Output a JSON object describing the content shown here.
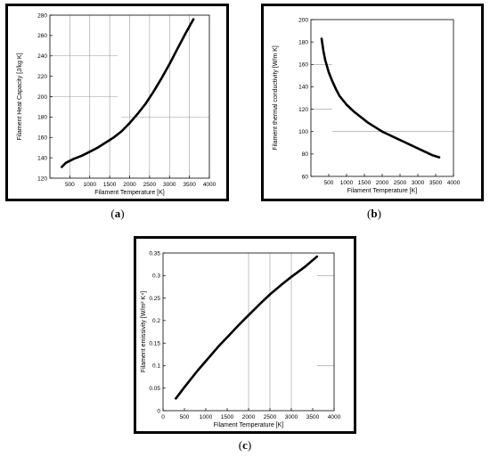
{
  "captions": [
    "a",
    "b",
    "c"
  ],
  "chart_data": [
    {
      "id": "a",
      "type": "line",
      "xlabel": "Filament Temperature [K]",
      "ylabel": "Filament Heat Capacity [J/kg K]",
      "xlim": [
        0,
        4000
      ],
      "ylim": [
        120,
        280
      ],
      "xticks": [
        500,
        1000,
        1500,
        2000,
        2500,
        3000,
        3500,
        4000
      ],
      "yticks": [
        120,
        140,
        160,
        180,
        200,
        220,
        240,
        260,
        280
      ],
      "grid_vertical": [
        500,
        1000,
        1500,
        2000,
        2500,
        3000,
        3500
      ],
      "grid_horizontal": [
        {
          "y": 240,
          "x0": 0,
          "x1": 1700
        },
        {
          "y": 200,
          "x0": 0,
          "x1": 1700
        },
        {
          "y": 180,
          "x0": 1800,
          "x1": 4000
        }
      ],
      "series": [
        {
          "x": [
            300,
            400,
            600,
            800,
            1000,
            1200,
            1400,
            1600,
            1800,
            2000,
            2200,
            2400,
            2600,
            2800,
            3000,
            3200,
            3400,
            3600
          ],
          "y": [
            131,
            135,
            139,
            142,
            146,
            150,
            155,
            160,
            166,
            174,
            183,
            193,
            205,
            218,
            232,
            247,
            262,
            276
          ]
        }
      ]
    },
    {
      "id": "b",
      "type": "line",
      "xlabel": "Filament Temperature [K]",
      "ylabel": "Filament thermal conductivity [W/m K]",
      "xlim": [
        0,
        4000
      ],
      "ylim": [
        60,
        200
      ],
      "xticks": [
        500,
        1000,
        1500,
        2000,
        2500,
        3000,
        3500,
        4000
      ],
      "yticks": [
        60,
        80,
        100,
        120,
        140,
        160,
        180,
        200
      ],
      "grid_vertical": [],
      "grid_horizontal": [
        {
          "y": 160,
          "x0": 0,
          "x1": 600
        },
        {
          "y": 120,
          "x0": 0,
          "x1": 600
        },
        {
          "y": 100,
          "x0": 600,
          "x1": 4000
        }
      ],
      "series": [
        {
          "x": [
            300,
            350,
            400,
            500,
            600,
            700,
            800,
            1000,
            1200,
            1400,
            1600,
            1800,
            2000,
            2200,
            2400,
            2600,
            2800,
            3000,
            3200,
            3400,
            3600
          ],
          "y": [
            183,
            172,
            164,
            153,
            145,
            138,
            132,
            124,
            118,
            113,
            108,
            104,
            100,
            97,
            94,
            91,
            88,
            85,
            82,
            79,
            77
          ]
        }
      ]
    },
    {
      "id": "c",
      "type": "line",
      "xlabel": "Filament Temperature [K]",
      "ylabel": "Filament emissivity [W/m² K⁴]",
      "xlim": [
        0,
        4000
      ],
      "ylim": [
        0,
        0.35
      ],
      "xticks": [
        0,
        500,
        1000,
        1500,
        2000,
        2500,
        3000,
        3500,
        4000
      ],
      "yticks": [
        0,
        0.05,
        0.1,
        0.15,
        0.2,
        0.25,
        0.3,
        0.35
      ],
      "ytick_labels": [
        "0",
        "0.05",
        "0.1",
        "0.15",
        "0.2",
        "0.25",
        "0.3",
        "0.35"
      ],
      "grid_vertical": [
        2000,
        2500,
        3000
      ],
      "grid_horizontal": [
        {
          "y": 0.3,
          "x0": 3600,
          "x1": 4000
        },
        {
          "y": 0.1,
          "x0": 3600,
          "x1": 4000
        }
      ],
      "series": [
        {
          "x": [
            300,
            500,
            800,
            1000,
            1300,
            1500,
            1800,
            2000,
            2300,
            2500,
            2800,
            3000,
            3300,
            3600
          ],
          "y": [
            0.027,
            0.052,
            0.088,
            0.11,
            0.143,
            0.163,
            0.193,
            0.212,
            0.24,
            0.258,
            0.282,
            0.297,
            0.318,
            0.342
          ]
        }
      ]
    }
  ]
}
